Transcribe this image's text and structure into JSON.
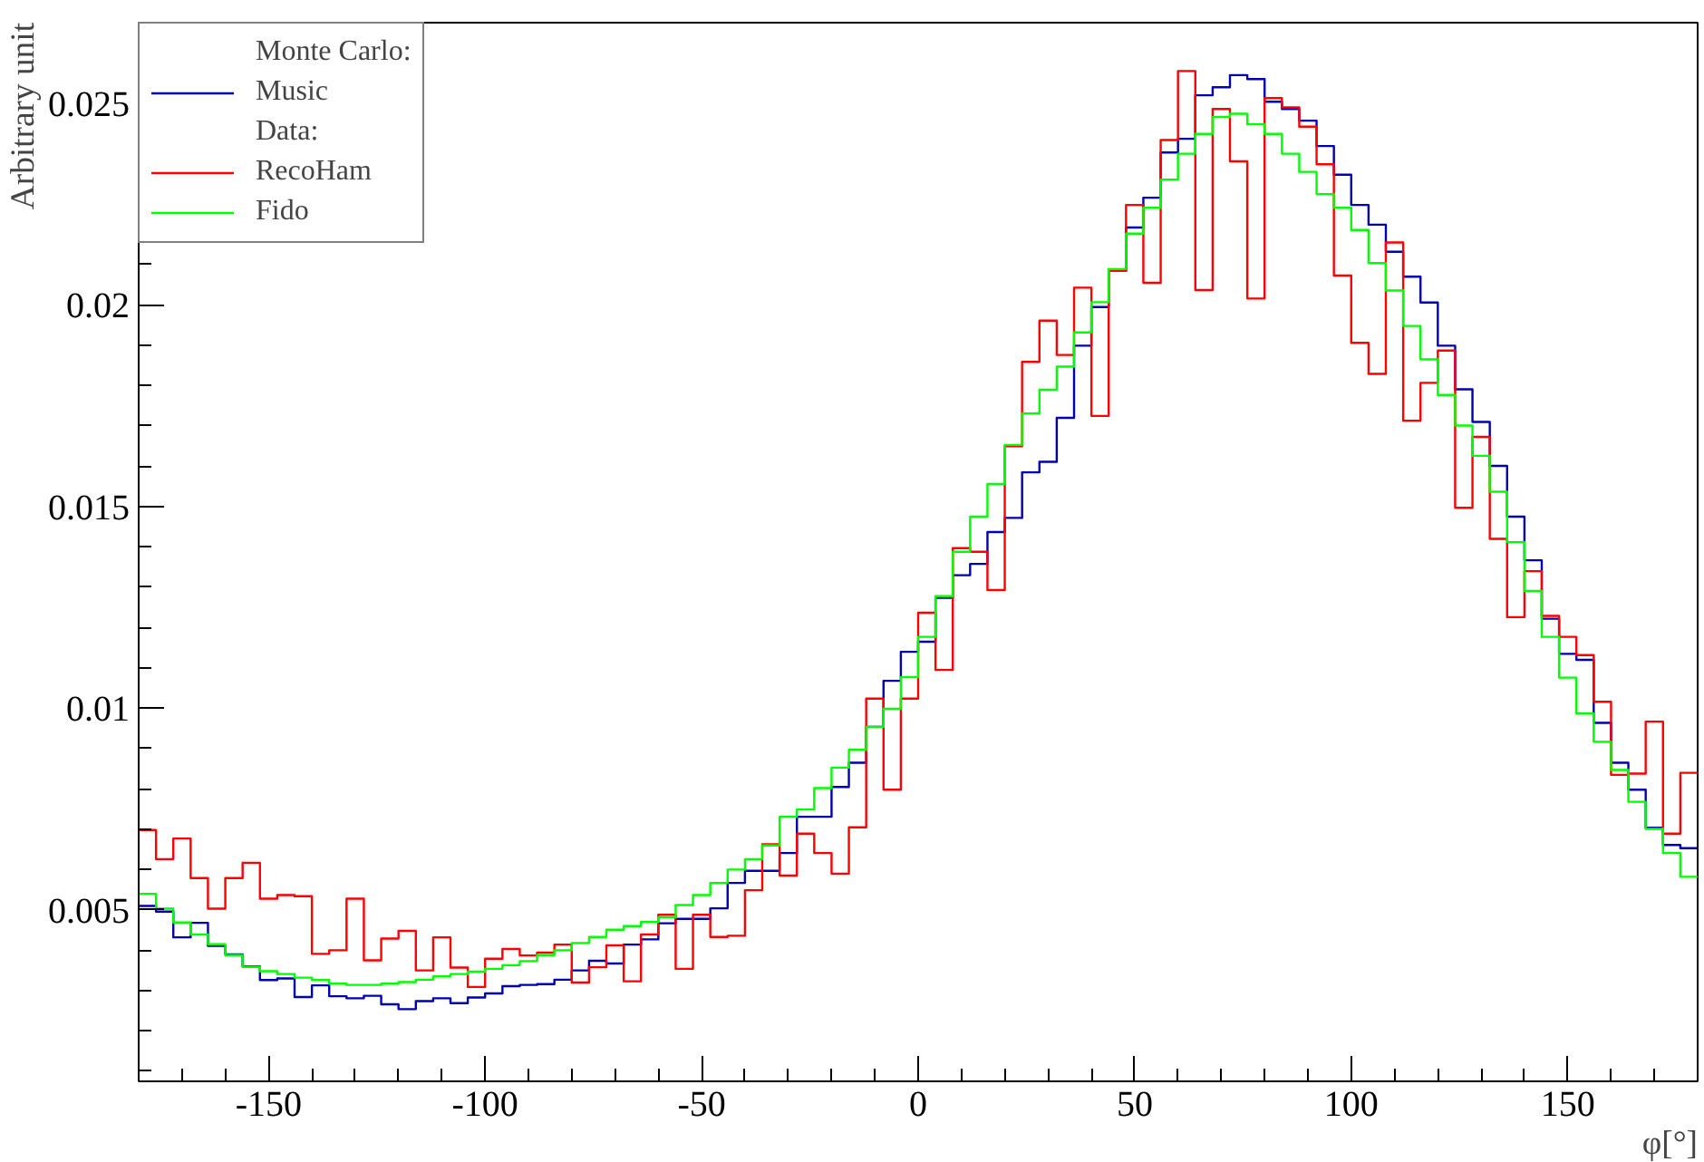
{
  "chart_data": {
    "type": "histogram",
    "xlabel": "φ[°]",
    "ylabel": "Arbitrary unit",
    "annotations": [
      "Monte Carlo:",
      "Data:"
    ],
    "bins": [
      -180,
      -176,
      -172,
      -168,
      -164,
      -160,
      -156,
      -152,
      -148,
      -144,
      -140,
      -136,
      -132,
      -128,
      -124,
      -120,
      -116,
      -112,
      -108,
      -104,
      -100,
      -96,
      -92,
      -88,
      -84,
      -80,
      -76,
      -72,
      -68,
      -64,
      -60,
      -56,
      -52,
      -48,
      -44,
      -40,
      -36,
      -32,
      -28,
      -24,
      -20,
      -16,
      -12,
      -8,
      -4,
      0,
      4,
      8,
      12,
      16,
      20,
      24,
      28,
      32,
      36,
      40,
      44,
      48,
      52,
      56,
      60,
      64,
      68,
      72,
      76,
      80,
      84,
      88,
      92,
      96,
      100,
      104,
      108,
      112,
      116,
      120,
      124,
      128,
      132,
      136,
      140,
      144,
      148,
      152,
      156,
      160,
      164,
      168,
      172,
      176,
      180
    ],
    "series": [
      {
        "name": "Music",
        "color": "#0000b0",
        "values": [
          0.0051,
          0.00496,
          0.00432,
          0.00468,
          0.00411,
          0.0039,
          0.0036,
          0.00326,
          0.0033,
          0.00284,
          0.00313,
          0.00286,
          0.00281,
          0.00287,
          0.00266,
          0.00254,
          0.00274,
          0.00281,
          0.00269,
          0.00283,
          0.00293,
          0.00311,
          0.00314,
          0.00316,
          0.00327,
          0.0035,
          0.00374,
          0.00367,
          0.00414,
          0.00427,
          0.00467,
          0.00478,
          0.00478,
          0.00504,
          0.00567,
          0.00597,
          0.00597,
          0.00641,
          0.00731,
          0.00731,
          0.00805,
          0.00865,
          0.00954,
          0.01068,
          0.0114,
          0.01165,
          0.01274,
          0.0133,
          0.01358,
          0.01437,
          0.01472,
          0.01585,
          0.01611,
          0.0172,
          0.01899,
          0.01995,
          0.02085,
          0.02192,
          0.02266,
          0.02378,
          0.02412,
          0.0252,
          0.0254,
          0.0257,
          0.0256,
          0.02504,
          0.02486,
          0.02457,
          0.02394,
          0.02323,
          0.02248,
          0.02199,
          0.02132,
          0.0207,
          0.02006,
          0.01899,
          0.01791,
          0.0171,
          0.01601,
          0.01475,
          0.01367,
          0.01222,
          0.01135,
          0.0112,
          0.00964,
          0.00865,
          0.00798,
          0.00704,
          0.00661,
          0.00653
        ]
      },
      {
        "name": "RecoHam",
        "color": "#ff0000",
        "values": [
          0.00698,
          0.00626,
          0.00677,
          0.00579,
          0.00503,
          0.00579,
          0.00617,
          0.00528,
          0.00537,
          0.00534,
          0.00391,
          0.004,
          0.00528,
          0.00375,
          0.00429,
          0.00448,
          0.0035,
          0.00432,
          0.00357,
          0.00309,
          0.00379,
          0.00403,
          0.00387,
          0.00394,
          0.00414,
          0.0032,
          0.00358,
          0.00412,
          0.00323,
          0.00439,
          0.00488,
          0.00354,
          0.00488,
          0.00433,
          0.00436,
          0.00549,
          0.00663,
          0.00585,
          0.00689,
          0.00641,
          0.0059,
          0.00705,
          0.01024,
          0.00798,
          0.01024,
          0.01237,
          0.01095,
          0.01397,
          0.01388,
          0.01293,
          0.0165,
          0.01859,
          0.01961,
          0.01876,
          0.02043,
          0.01725,
          0.02085,
          0.02248,
          0.02055,
          0.02409,
          0.0258,
          0.02037,
          0.02486,
          0.02356,
          0.02016,
          0.02513,
          0.0249,
          0.02442,
          0.02349,
          0.02073,
          0.01906,
          0.01829,
          0.02155,
          0.01713,
          0.01807,
          0.01887,
          0.01497,
          0.01673,
          0.0142,
          0.01226,
          0.0134,
          0.01229,
          0.01177,
          0.01132,
          0.01016,
          0.00835,
          0.00838,
          0.00967,
          0.00689,
          0.0084
        ]
      },
      {
        "name": "Fido",
        "color": "#00ff00",
        "values": [
          0.0054,
          0.00503,
          0.00469,
          0.00439,
          0.00415,
          0.00388,
          0.00359,
          0.00348,
          0.00341,
          0.00332,
          0.00326,
          0.00317,
          0.00314,
          0.00314,
          0.00317,
          0.00321,
          0.00327,
          0.00335,
          0.00341,
          0.00347,
          0.00354,
          0.00363,
          0.00373,
          0.00388,
          0.004,
          0.00418,
          0.00433,
          0.00451,
          0.0046,
          0.0047,
          0.00482,
          0.00512,
          0.00537,
          0.00567,
          0.006,
          0.00626,
          0.0066,
          0.00731,
          0.00749,
          0.00802,
          0.00853,
          0.00897,
          0.00954,
          0.00999,
          0.01077,
          0.01177,
          0.01278,
          0.01388,
          0.01475,
          0.01556,
          0.01653,
          0.01731,
          0.0179,
          0.01847,
          0.01932,
          0.02007,
          0.02089,
          0.02177,
          0.02241,
          0.02311,
          0.02375,
          0.02424,
          0.02466,
          0.02474,
          0.02448,
          0.02424,
          0.02375,
          0.0233,
          0.02275,
          0.02241,
          0.02186,
          0.02104,
          0.02036,
          0.01948,
          0.01865,
          0.01777,
          0.01701,
          0.01626,
          0.01537,
          0.01412,
          0.01291,
          0.01177,
          0.01076,
          0.00987,
          0.00917,
          0.00847,
          0.00768,
          0.00701,
          0.00641,
          0.00582
        ]
      }
    ],
    "xlim": [
      -180,
      180
    ],
    "ylim": [
      0.00075,
      0.027
    ],
    "xticks": [
      {
        "value": -170,
        "label": null
      },
      {
        "value": -160,
        "label": null
      },
      -150,
      {
        "value": -140,
        "label": null
      },
      {
        "value": -130,
        "label": null
      },
      {
        "value": -120,
        "label": null
      },
      {
        "value": -110,
        "label": null
      },
      -100,
      {
        "value": -90,
        "label": null
      },
      {
        "value": -80,
        "label": null
      },
      {
        "value": -70,
        "label": null
      },
      {
        "value": -60,
        "label": null
      },
      -50,
      {
        "value": -40,
        "label": null
      },
      {
        "value": -30,
        "label": null
      },
      {
        "value": -20,
        "label": null
      },
      {
        "value": -10,
        "label": null
      },
      0,
      {
        "value": 10,
        "label": null
      },
      {
        "value": 20,
        "label": null
      },
      {
        "value": 30,
        "label": null
      },
      {
        "value": 40,
        "label": null
      },
      50,
      {
        "value": 60,
        "label": null
      },
      {
        "value": 70,
        "label": null
      },
      {
        "value": 80,
        "label": null
      },
      {
        "value": 90,
        "label": null
      },
      100,
      {
        "value": 110,
        "label": null
      },
      {
        "value": 120,
        "label": null
      },
      {
        "value": 130,
        "label": null
      },
      {
        "value": 140,
        "label": null
      },
      150,
      {
        "value": 160,
        "label": null
      },
      {
        "value": 170,
        "label": null
      }
    ],
    "yticks": [
      {
        "value": 0.001,
        "label": null
      },
      {
        "value": 0.002,
        "label": null
      },
      {
        "value": 0.003,
        "label": null
      },
      {
        "value": 0.004,
        "label": null
      },
      0.005,
      {
        "value": 0.006,
        "label": null
      },
      {
        "value": 0.007,
        "label": null
      },
      {
        "value": 0.008,
        "label": null
      },
      {
        "value": 0.009,
        "label": null
      },
      0.01,
      {
        "value": 0.011,
        "label": null
      },
      {
        "value": 0.012,
        "label": null
      },
      {
        "value": 0.013,
        "label": null
      },
      {
        "value": 0.014,
        "label": null
      },
      0.015,
      {
        "value": 0.016,
        "label": null
      },
      {
        "value": 0.017,
        "label": null
      },
      {
        "value": 0.018,
        "label": null
      },
      {
        "value": 0.019,
        "label": null
      },
      0.02,
      {
        "value": 0.021,
        "label": null
      },
      {
        "value": 0.022,
        "label": null
      },
      {
        "value": 0.023,
        "label": null
      },
      {
        "value": 0.024,
        "label": null
      },
      0.025,
      {
        "value": 0.026,
        "label": null
      }
    ],
    "grid": false,
    "legend": "top left"
  }
}
